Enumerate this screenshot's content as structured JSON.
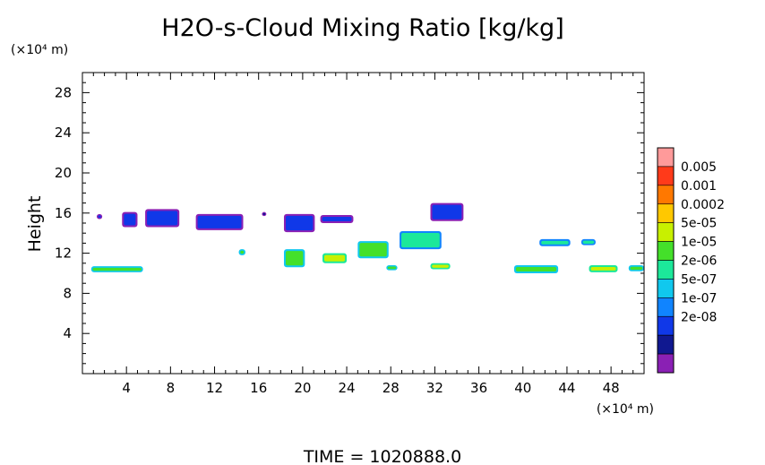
{
  "chart_data": {
    "type": "heatmap",
    "title": "H2O-s-Cloud Mixing Ratio [kg/kg]",
    "ylabel": "Height",
    "y_unit": "(×10⁴ m)",
    "x_unit": "(×10⁴ m)",
    "xlim": [
      0,
      51
    ],
    "ylim": [
      0,
      30
    ],
    "x_ticks": [
      "4",
      "8",
      "12",
      "16",
      "20",
      "24",
      "28",
      "32",
      "36",
      "40",
      "44",
      "48"
    ],
    "x_tick_values": [
      4,
      8,
      12,
      16,
      20,
      24,
      28,
      32,
      36,
      40,
      44,
      48
    ],
    "y_ticks": [
      "4",
      "8",
      "12",
      "16",
      "20",
      "24",
      "28"
    ],
    "y_tick_values": [
      4,
      8,
      12,
      16,
      20,
      24,
      28
    ],
    "footer": "TIME  =  1020888.0",
    "colorbar": {
      "labels": [
        "0.005",
        "0.001",
        "0.0002",
        "5e-05",
        "1e-05",
        "2e-06",
        "5e-07",
        "1e-07",
        "2e-08"
      ],
      "colors": [
        "#ff9a9a",
        "#ff3a1a",
        "#ff7800",
        "#ffc800",
        "#c8f000",
        "#44e02a",
        "#1ce89a",
        "#10c8ee",
        "#1084ff",
        "#1038e8",
        "#101890",
        "#8a20b4"
      ]
    },
    "regions": [
      {
        "x": [
          0.8,
          5.5
        ],
        "y": [
          10.1,
          10.7
        ],
        "level": 5
      },
      {
        "x": [
          1.3,
          1.8
        ],
        "y": [
          15.4,
          15.9
        ],
        "level": 9
      },
      {
        "x": [
          3.6,
          5.0
        ],
        "y": [
          14.6,
          16.1
        ],
        "level": 9
      },
      {
        "x": [
          5.7,
          8.8
        ],
        "y": [
          14.6,
          16.4
        ],
        "level": 9
      },
      {
        "x": [
          10.3,
          14.6
        ],
        "y": [
          14.3,
          15.9
        ],
        "level": 9
      },
      {
        "x": [
          16.3,
          16.7
        ],
        "y": [
          15.7,
          16.1
        ],
        "level": 10
      },
      {
        "x": [
          14.2,
          14.8
        ],
        "y": [
          11.8,
          12.4
        ],
        "level": 5
      },
      {
        "x": [
          18.3,
          20.2
        ],
        "y": [
          10.6,
          12.4
        ],
        "level": 5
      },
      {
        "x": [
          18.3,
          21.1
        ],
        "y": [
          14.1,
          15.9
        ],
        "level": 9
      },
      {
        "x": [
          21.6,
          24.6
        ],
        "y": [
          15.0,
          15.8
        ],
        "level": 9
      },
      {
        "x": [
          21.8,
          24.0
        ],
        "y": [
          11.0,
          12.0
        ],
        "level": 4
      },
      {
        "x": [
          25.0,
          27.8
        ],
        "y": [
          11.5,
          13.2
        ],
        "level": 5
      },
      {
        "x": [
          27.6,
          28.6
        ],
        "y": [
          10.3,
          10.8
        ],
        "level": 5
      },
      {
        "x": [
          28.8,
          32.6
        ],
        "y": [
          12.4,
          14.2
        ],
        "level": 6
      },
      {
        "x": [
          31.6,
          33.4
        ],
        "y": [
          10.4,
          11.0
        ],
        "level": 4
      },
      {
        "x": [
          31.6,
          34.6
        ],
        "y": [
          15.2,
          17.0
        ],
        "level": 9
      },
      {
        "x": [
          39.2,
          43.2
        ],
        "y": [
          10.0,
          10.8
        ],
        "level": 5
      },
      {
        "x": [
          41.5,
          44.3
        ],
        "y": [
          12.7,
          13.4
        ],
        "level": 6
      },
      {
        "x": [
          45.3,
          46.6
        ],
        "y": [
          12.8,
          13.4
        ],
        "level": 6
      },
      {
        "x": [
          46.0,
          48.6
        ],
        "y": [
          10.1,
          10.8
        ],
        "level": 4
      },
      {
        "x": [
          49.6,
          51.0
        ],
        "y": [
          10.2,
          10.8
        ],
        "level": 5
      }
    ]
  }
}
